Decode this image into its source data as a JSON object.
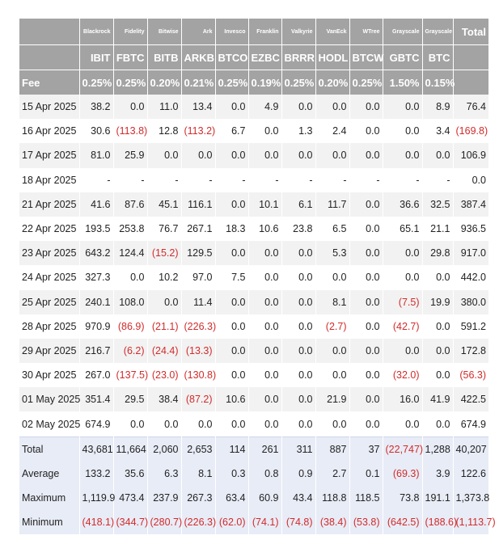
{
  "issuers": [
    "Blackrock",
    "Fidelity",
    "Bitwise",
    "Ark",
    "Invesco",
    "Franklin",
    "Valkyrie",
    "VanEck",
    "WTree",
    "Grayscale",
    "Grayscale"
  ],
  "total_header": "Total",
  "tickers": [
    "IBIT",
    "FBTC",
    "BITB",
    "ARKB",
    "BTCO",
    "EZBC",
    "BRRR",
    "HODL",
    "BTCW",
    "GBTC",
    "BTC"
  ],
  "fee_label": "Fee",
  "fees": [
    "0.25%",
    "0.25%",
    "0.20%",
    "0.21%",
    "0.25%",
    "0.19%",
    "0.25%",
    "0.20%",
    "0.25%",
    "1.50%",
    "0.15%"
  ],
  "rows": [
    {
      "date": "15 Apr 2025",
      "vals": [
        "38.2",
        "0.0",
        "11.0",
        "13.4",
        "0.0",
        "4.9",
        "0.0",
        "0.0",
        "0.0",
        "0.0",
        "8.9"
      ],
      "total": "76.4"
    },
    {
      "date": "16 Apr 2025",
      "vals": [
        "30.6",
        "(113.8)",
        "12.8",
        "(113.2)",
        "6.7",
        "0.0",
        "1.3",
        "2.4",
        "0.0",
        "0.0",
        "3.4"
      ],
      "total": "(169.8)"
    },
    {
      "date": "17 Apr 2025",
      "vals": [
        "81.0",
        "25.9",
        "0.0",
        "0.0",
        "0.0",
        "0.0",
        "0.0",
        "0.0",
        "0.0",
        "0.0",
        "0.0"
      ],
      "total": "106.9"
    },
    {
      "date": "18 Apr 2025",
      "vals": [
        "-",
        "-",
        "-",
        "-",
        "-",
        "-",
        "-",
        "-",
        "-",
        "-",
        "-"
      ],
      "total": "0.0"
    },
    {
      "date": "21 Apr 2025",
      "vals": [
        "41.6",
        "87.6",
        "45.1",
        "116.1",
        "0.0",
        "10.1",
        "6.1",
        "11.7",
        "0.0",
        "36.6",
        "32.5"
      ],
      "total": "387.4"
    },
    {
      "date": "22 Apr 2025",
      "vals": [
        "193.5",
        "253.8",
        "76.7",
        "267.1",
        "18.3",
        "10.6",
        "23.8",
        "6.5",
        "0.0",
        "65.1",
        "21.1"
      ],
      "total": "936.5"
    },
    {
      "date": "23 Apr 2025",
      "vals": [
        "643.2",
        "124.4",
        "(15.2)",
        "129.5",
        "0.0",
        "0.0",
        "0.0",
        "5.3",
        "0.0",
        "0.0",
        "29.8"
      ],
      "total": "917.0"
    },
    {
      "date": "24 Apr 2025",
      "vals": [
        "327.3",
        "0.0",
        "10.2",
        "97.0",
        "7.5",
        "0.0",
        "0.0",
        "0.0",
        "0.0",
        "0.0",
        "0.0"
      ],
      "total": "442.0"
    },
    {
      "date": "25 Apr 2025",
      "vals": [
        "240.1",
        "108.0",
        "0.0",
        "11.4",
        "0.0",
        "0.0",
        "0.0",
        "8.1",
        "0.0",
        "(7.5)",
        "19.9"
      ],
      "total": "380.0"
    },
    {
      "date": "28 Apr 2025",
      "vals": [
        "970.9",
        "(86.9)",
        "(21.1)",
        "(226.3)",
        "0.0",
        "0.0",
        "0.0",
        "(2.7)",
        "0.0",
        "(42.7)",
        "0.0"
      ],
      "total": "591.2"
    },
    {
      "date": "29 Apr 2025",
      "vals": [
        "216.7",
        "(6.2)",
        "(24.4)",
        "(13.3)",
        "0.0",
        "0.0",
        "0.0",
        "0.0",
        "0.0",
        "0.0",
        "0.0"
      ],
      "total": "172.8"
    },
    {
      "date": "30 Apr 2025",
      "vals": [
        "267.0",
        "(137.5)",
        "(23.0)",
        "(130.8)",
        "0.0",
        "0.0",
        "0.0",
        "0.0",
        "0.0",
        "(32.0)",
        "0.0"
      ],
      "total": "(56.3)"
    },
    {
      "date": "01 May 2025",
      "vals": [
        "351.4",
        "29.5",
        "38.4",
        "(87.2)",
        "10.6",
        "0.0",
        "0.0",
        "21.9",
        "0.0",
        "16.0",
        "41.9"
      ],
      "total": "422.5"
    },
    {
      "date": "02 May 2025",
      "vals": [
        "674.9",
        "0.0",
        "0.0",
        "0.0",
        "0.0",
        "0.0",
        "0.0",
        "0.0",
        "0.0",
        "0.0",
        "0.0"
      ],
      "total": "674.9"
    }
  ],
  "summary": [
    {
      "label": "Total",
      "vals": [
        "43,681",
        "11,664",
        "2,060",
        "2,653",
        "114",
        "261",
        "311",
        "887",
        "37",
        "(22,747)",
        "1,288"
      ],
      "total": "40,207"
    },
    {
      "label": "Average",
      "vals": [
        "133.2",
        "35.6",
        "6.3",
        "8.1",
        "0.3",
        "0.8",
        "0.9",
        "2.7",
        "0.1",
        "(69.3)",
        "3.9"
      ],
      "total": "122.6"
    },
    {
      "label": "Maximum",
      "vals": [
        "1,119.9",
        "473.4",
        "237.9",
        "267.3",
        "63.4",
        "60.9",
        "43.4",
        "118.8",
        "118.5",
        "73.8",
        "191.1"
      ],
      "total": "1,373.8"
    },
    {
      "label": "Minimum",
      "vals": [
        "(418.1)",
        "(344.7)",
        "(280.7)",
        "(226.3)",
        "(62.0)",
        "(74.1)",
        "(74.8)",
        "(38.4)",
        "(53.8)",
        "(642.5)",
        "(188.6)"
      ],
      "total": "(1,113.7)"
    }
  ],
  "colors": {
    "header_bg": "#a3a3a3",
    "negative": "#d22b2b",
    "summary_bg": "#e8ecf6",
    "stripe": "#f2f2f2"
  }
}
